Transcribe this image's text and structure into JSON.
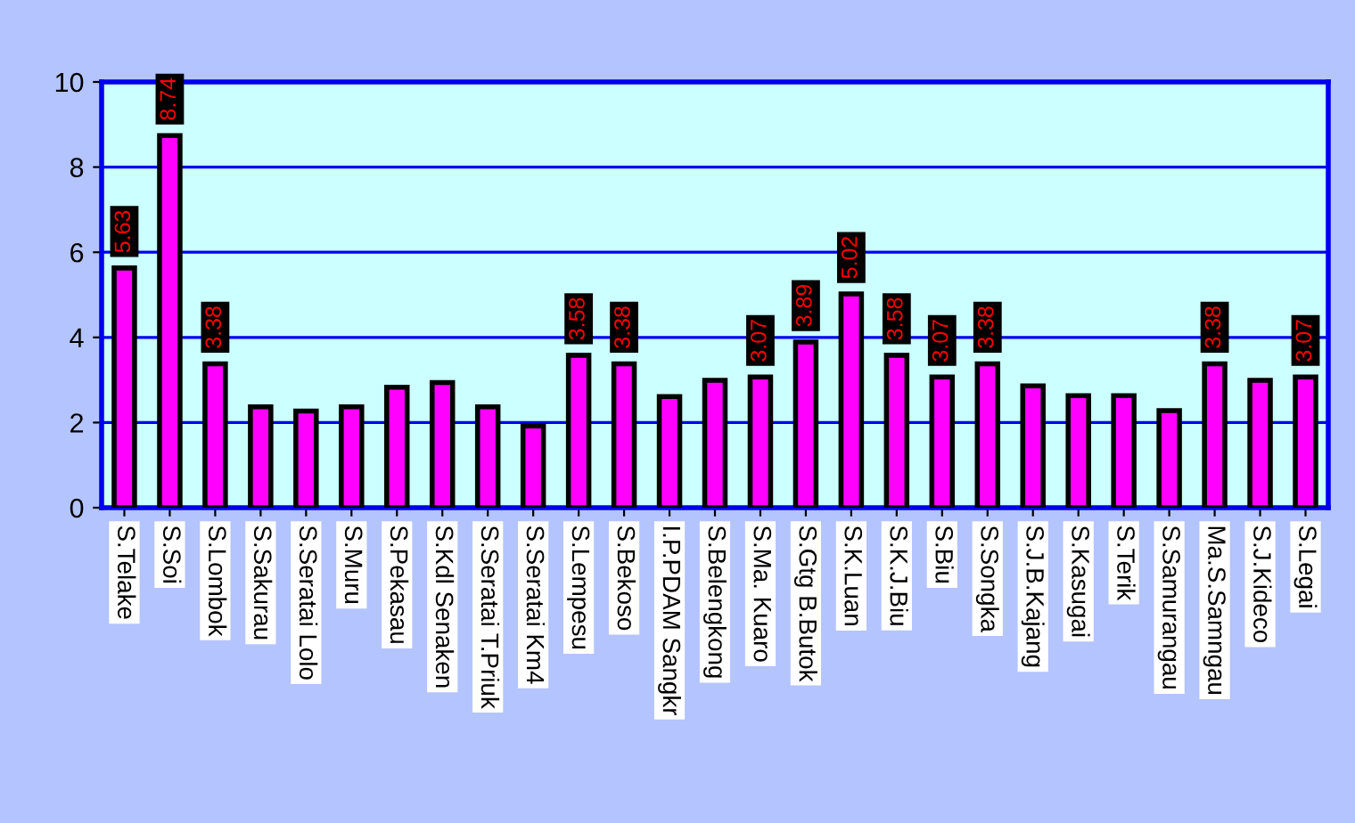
{
  "chart_data": {
    "type": "bar",
    "categories": [
      "S.Telake",
      "S.Soi",
      "S.Lombok",
      "S.Sakurau",
      "S.Seratai Lolo",
      "S.Muru",
      "S.Pekasau",
      "S.Kdl Senaken",
      "S.Seratai T.Priuk",
      "S.Seratai Km4",
      "S.Lempesu",
      "S.Bekoso",
      "I.P.PDAM Sangkr",
      "S.Belengkong",
      "S.Ma. Kuaro",
      "S.Gtg B.Butok",
      "S.K.Luan",
      "S.K.J.Biu",
      "S.Biu",
      "S.Songka",
      "S.J.B.Kajang",
      "S.Kasugai",
      "S.Terik",
      "S.Samurangau",
      "Ma.S.Samngau",
      "S.J.Kideco",
      "S.Legai"
    ],
    "values": [
      5.63,
      8.74,
      3.38,
      2.37,
      2.27,
      2.37,
      2.83,
      2.94,
      2.37,
      1.92,
      3.58,
      3.38,
      2.61,
      2.99,
      3.07,
      3.89,
      5.02,
      3.58,
      3.07,
      3.38,
      2.86,
      2.63,
      2.63,
      2.28,
      3.38,
      2.99,
      3.07
    ],
    "value_labels": [
      "5.63",
      "8.74",
      "3.38",
      null,
      null,
      null,
      null,
      null,
      null,
      null,
      "3.58",
      "3.38",
      null,
      null,
      "3.07",
      "3.89",
      "5.02",
      "3.58",
      "3.07",
      "3.38",
      null,
      null,
      null,
      null,
      "3.38",
      null,
      "3.07"
    ],
    "color": "#ff00ff",
    "ylim": [
      0,
      10
    ],
    "yticks": [
      0,
      2,
      4,
      6,
      8,
      10
    ],
    "grid": "y"
  }
}
